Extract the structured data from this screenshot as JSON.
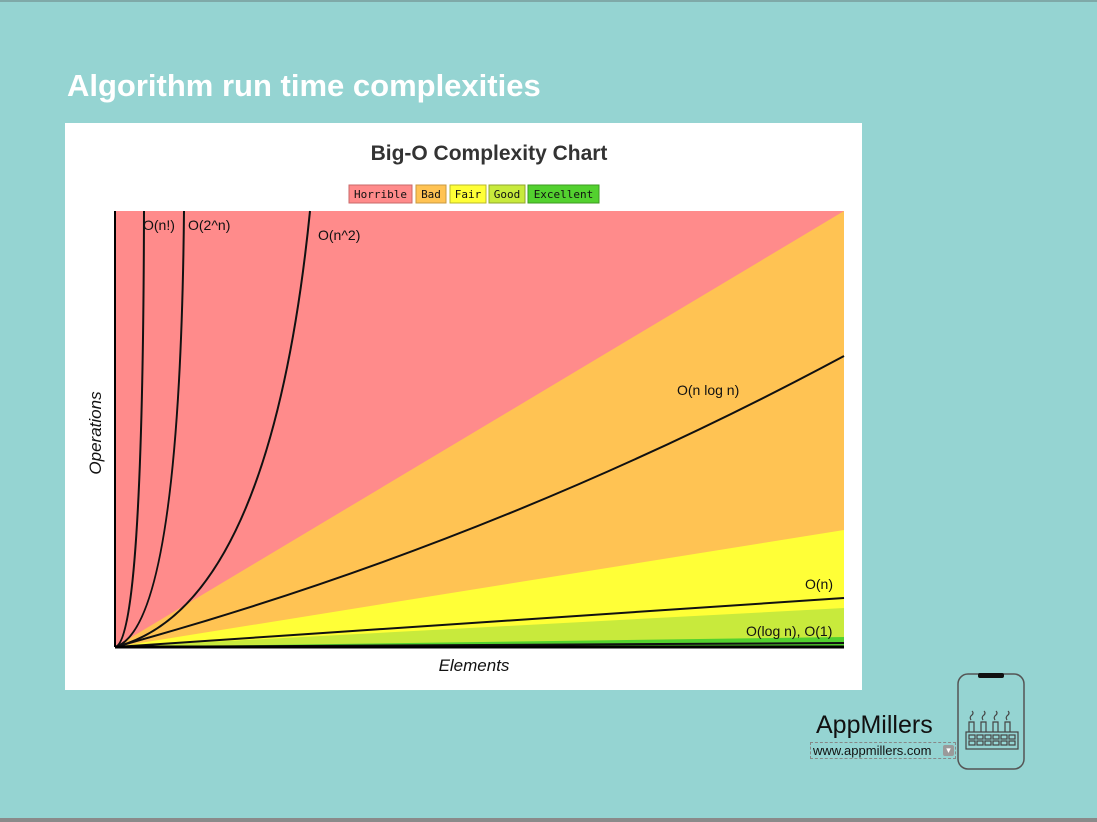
{
  "slide": {
    "title": "Algorithm run time complexities"
  },
  "chart": {
    "title": "Big-O Complexity Chart",
    "legend": [
      {
        "label": "Horrible",
        "color": "#ff8b8b",
        "border": "#c96a6a"
      },
      {
        "label": "Bad",
        "color": "#ffc353",
        "border": "#c99a42"
      },
      {
        "label": "Fair",
        "color": "#ffff37",
        "border": "#b9b92a"
      },
      {
        "label": "Good",
        "color": "#c8ea3c",
        "border": "#8fa72b"
      },
      {
        "label": "Excellent",
        "color": "#53d12f",
        "border": "#3c9a22"
      }
    ],
    "xlabel": "Elements",
    "ylabel": "Operations",
    "curve_labels": {
      "factorial": "O(n!)",
      "exponential": "O(2^n)",
      "quadratic": "O(n^2)",
      "nlogn": "O(n log n)",
      "linear": "O(n)",
      "log_const": "O(log n), O(1)"
    }
  },
  "branding": {
    "name": "AppMillers",
    "url": "www.appmillers.com",
    "logo_icon": "phone-factory-icon",
    "url_menu_icon": "chevron-down-icon"
  }
}
